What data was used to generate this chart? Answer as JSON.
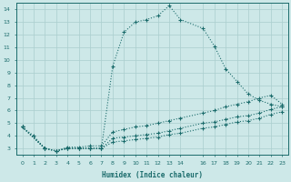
{
  "bg_color": "#cde8e8",
  "grid_color": "#aacece",
  "line_color": "#1a6b6b",
  "xlabel": "Humidex (Indice chaleur)",
  "xlim": [
    -0.5,
    23.5
  ],
  "ylim": [
    2.5,
    14.5
  ],
  "xticks": [
    0,
    1,
    2,
    3,
    4,
    5,
    6,
    7,
    8,
    9,
    10,
    11,
    12,
    13,
    14,
    16,
    17,
    18,
    19,
    20,
    21,
    22,
    23
  ],
  "yticks": [
    3,
    4,
    5,
    6,
    7,
    8,
    9,
    10,
    11,
    12,
    13,
    14
  ],
  "curve1_x": [
    0,
    1,
    2,
    3,
    4,
    5,
    6,
    7,
    8,
    9,
    10,
    11,
    12,
    13,
    14,
    16,
    17,
    18,
    19,
    20,
    21,
    22,
    23
  ],
  "curve1_y": [
    4.7,
    4.0,
    3.0,
    2.8,
    3.0,
    3.0,
    3.0,
    3.0,
    9.5,
    12.2,
    13.0,
    13.2,
    13.5,
    14.3,
    13.2,
    12.5,
    11.1,
    9.3,
    8.3,
    7.3,
    6.8,
    6.5,
    6.3
  ],
  "curve2_x": [
    0,
    2,
    3,
    4,
    5,
    6,
    7,
    8,
    9,
    10,
    11,
    12,
    13,
    14,
    16,
    17,
    18,
    19,
    20,
    21,
    22,
    23
  ],
  "curve2_y": [
    4.7,
    3.0,
    2.8,
    3.1,
    3.1,
    3.2,
    3.2,
    4.3,
    4.5,
    4.7,
    4.8,
    5.0,
    5.2,
    5.4,
    5.8,
    6.0,
    6.3,
    6.5,
    6.7,
    7.0,
    7.2,
    6.5
  ],
  "curve3_x": [
    0,
    2,
    3,
    4,
    5,
    6,
    7,
    8,
    9,
    10,
    11,
    12,
    13,
    14,
    16,
    17,
    18,
    19,
    20,
    21,
    22,
    23
  ],
  "curve3_y": [
    4.7,
    3.0,
    2.8,
    3.0,
    3.0,
    3.0,
    3.0,
    3.8,
    3.9,
    4.0,
    4.1,
    4.2,
    4.4,
    4.6,
    5.0,
    5.1,
    5.3,
    5.5,
    5.6,
    5.8,
    6.1,
    6.3
  ],
  "curve4_x": [
    0,
    2,
    3,
    4,
    5,
    6,
    7,
    8,
    9,
    10,
    11,
    12,
    13,
    14,
    16,
    17,
    18,
    19,
    20,
    21,
    22,
    23
  ],
  "curve4_y": [
    4.7,
    3.0,
    2.8,
    3.0,
    3.0,
    3.0,
    3.0,
    3.5,
    3.6,
    3.7,
    3.8,
    3.9,
    4.1,
    4.2,
    4.6,
    4.7,
    4.9,
    5.1,
    5.2,
    5.4,
    5.7,
    5.9
  ]
}
